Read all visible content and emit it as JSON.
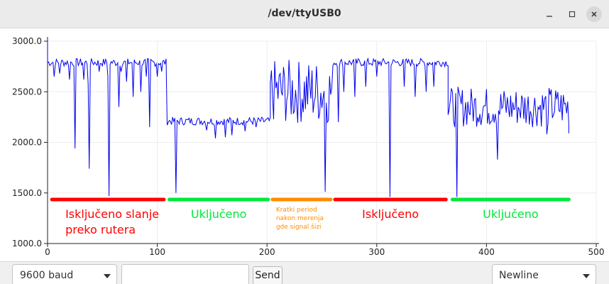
{
  "window": {
    "title": "/dev/ttyUSB0"
  },
  "toolbar": {
    "baud_value": "9600 baud",
    "send_label": "Send",
    "send_placeholder": "",
    "line_ending_value": "Newline"
  },
  "colors": {
    "line": "#0000ee",
    "off": "#ff0000",
    "on": "#00e83a",
    "short": "#ff8c00"
  },
  "chart_data": {
    "type": "line",
    "xlim": [
      0,
      500
    ],
    "ylim": [
      1000,
      3000
    ],
    "xticks": [
      0,
      100,
      200,
      300,
      400,
      500
    ],
    "yticks": [
      1000,
      1500,
      2000,
      2500,
      3000
    ],
    "xtick_labels": [
      "0",
      "100",
      "200",
      "300",
      "400",
      "500"
    ],
    "ytick_labels": [
      "1000.0",
      "1500.0",
      "2000.0",
      "2500.0",
      "3000.0"
    ],
    "grid": true,
    "segments": [
      {
        "x_start": 0,
        "x_end": 108,
        "base": 2790,
        "jitter": 40,
        "dips": [
          [
            6,
            2650
          ],
          [
            11,
            2680
          ],
          [
            20,
            2620
          ],
          [
            25,
            1940
          ],
          [
            33,
            2620
          ],
          [
            37,
            2580
          ],
          [
            38,
            1740
          ],
          [
            47,
            2700
          ],
          [
            55,
            2650
          ],
          [
            56,
            1470
          ],
          [
            65,
            2350
          ],
          [
            67,
            2700
          ],
          [
            72,
            2600
          ],
          [
            78,
            2450
          ],
          [
            85,
            2500
          ],
          [
            90,
            2650
          ],
          [
            93,
            2150
          ],
          [
            100,
            2650
          ],
          [
            104,
            2700
          ]
        ]
      },
      {
        "x_start": 109,
        "x_end": 203,
        "base": 2210,
        "jitter": 40,
        "dips": [
          [
            117,
            1500
          ],
          [
            145,
            2120
          ],
          [
            153,
            2040
          ],
          [
            162,
            2050
          ],
          [
            168,
            2070
          ],
          [
            180,
            2110
          ],
          [
            190,
            2150
          ]
        ]
      },
      {
        "x_start": 203,
        "x_end": 260,
        "base": 2500,
        "jitter": 320,
        "dips": [
          [
            253,
            1510
          ]
        ]
      },
      {
        "x_start": 260,
        "x_end": 365,
        "base": 2790,
        "jitter": 40,
        "dips": [
          [
            265,
            2200
          ],
          [
            270,
            2500
          ],
          [
            280,
            2450
          ],
          [
            290,
            2550
          ],
          [
            300,
            2650
          ],
          [
            312,
            1460
          ],
          [
            325,
            2550
          ],
          [
            335,
            2450
          ],
          [
            345,
            2500
          ],
          [
            352,
            2550
          ]
        ]
      },
      {
        "x_start": 365,
        "x_end": 475,
        "base": 2350,
        "jitter": 200,
        "dips": [
          [
            373,
            1460
          ],
          [
            410,
            1830
          ],
          [
            455,
            2080
          ]
        ]
      }
    ],
    "start_point": [
      0,
      3000
    ],
    "end_point": [
      475,
      2090
    ]
  },
  "annotations": [
    {
      "x_start": 2,
      "x_end": 108,
      "y": 1435,
      "color": "#ff0000",
      "label_lines": [
        "Isključeno slanje",
        "preko rutera"
      ],
      "label_size": "large"
    },
    {
      "x_start": 109,
      "x_end": 203,
      "y": 1435,
      "color": "#00e83a",
      "label_lines": [
        "Uključeno"
      ],
      "label_size": "large"
    },
    {
      "x_start": 203,
      "x_end": 260,
      "y": 1435,
      "color": "#ff8c00",
      "label_lines": [
        "Kratki period",
        "nakon merenja",
        "gde signal šizi"
      ],
      "label_size": "small"
    },
    {
      "x_start": 260,
      "x_end": 365,
      "y": 1435,
      "color": "#ff0000",
      "label_lines": [
        "Isključeno"
      ],
      "label_size": "large"
    },
    {
      "x_start": 367,
      "x_end": 477,
      "y": 1435,
      "color": "#00e83a",
      "label_lines": [
        "Uključeno"
      ],
      "label_size": "large"
    }
  ]
}
